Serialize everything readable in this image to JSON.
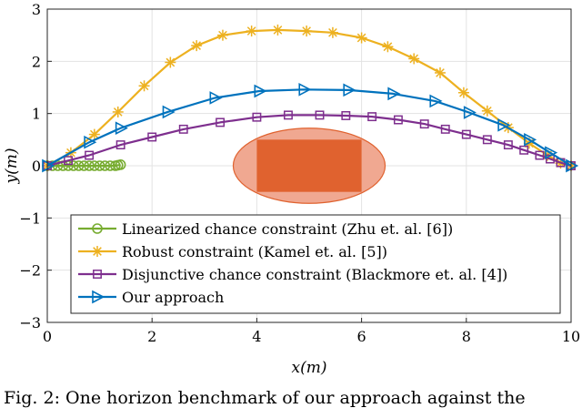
{
  "chart_data": {
    "type": "line",
    "xlabel": "x(m)",
    "ylabel": "y(m)",
    "xlim": [
      0,
      10
    ],
    "ylim": [
      -3,
      3
    ],
    "x_ticks": [
      "0",
      "2",
      "4",
      "6",
      "8",
      "10"
    ],
    "y_ticks": [
      "3",
      "2",
      "1",
      "0",
      "-1",
      "-2",
      "-3"
    ],
    "grid": true,
    "legend_position": "lower-center",
    "obstacle": {
      "rect_x": [
        4,
        6
      ],
      "rect_y": [
        -0.5,
        0.5
      ],
      "ellipse_center": [
        5,
        0
      ],
      "ellipse_radii": [
        1.45,
        0.72
      ],
      "rect_color": "#e0622f",
      "ellipse_color": "#f0a891"
    },
    "series": [
      {
        "name": "Linearized chance constraint (Zhu et. al. [6])",
        "color": "#77ac30",
        "marker": "circle",
        "x": [
          0,
          0.1,
          0.2,
          0.3,
          0.4,
          0.5,
          0.6,
          0.7,
          0.8,
          0.9,
          1.0,
          1.1,
          1.2,
          1.3,
          1.35,
          1.4
        ],
        "y": [
          0,
          0,
          0,
          0,
          0,
          0,
          0,
          0,
          0,
          0,
          0,
          0,
          0,
          0,
          0.01,
          0.02
        ]
      },
      {
        "name": "Robust constraint (Kamel et. al. [5])",
        "color": "#edb120",
        "marker": "star",
        "x": [
          0,
          0.45,
          0.9,
          1.35,
          1.85,
          2.35,
          2.85,
          3.35,
          3.9,
          4.4,
          4.95,
          5.45,
          6.0,
          6.5,
          7.0,
          7.5,
          7.95,
          8.4,
          8.8,
          9.2,
          9.55,
          9.8,
          10
        ],
        "y": [
          0,
          0.25,
          0.6,
          1.03,
          1.53,
          1.98,
          2.3,
          2.5,
          2.58,
          2.6,
          2.58,
          2.55,
          2.45,
          2.28,
          2.05,
          1.78,
          1.4,
          1.05,
          0.73,
          0.43,
          0.2,
          0.05,
          0
        ]
      },
      {
        "name": "Disjunctive chance constraint (Blackmore et. al. [4])",
        "color": "#7e2f8e",
        "marker": "square",
        "x": [
          0,
          0.4,
          0.8,
          1.4,
          2.0,
          2.6,
          3.3,
          4.0,
          4.6,
          5.2,
          5.7,
          6.2,
          6.7,
          7.2,
          7.6,
          8.0,
          8.4,
          8.8,
          9.1,
          9.4,
          9.6,
          9.8,
          10
        ],
        "y": [
          0,
          0.1,
          0.2,
          0.4,
          0.55,
          0.7,
          0.83,
          0.93,
          0.97,
          0.97,
          0.96,
          0.94,
          0.88,
          0.8,
          0.7,
          0.6,
          0.5,
          0.4,
          0.3,
          0.2,
          0.13,
          0.06,
          0
        ]
      },
      {
        "name": "Our approach",
        "color": "#0072bd",
        "marker": "triangle-right",
        "x": [
          0,
          0.8,
          1.4,
          2.3,
          3.2,
          4.05,
          4.9,
          5.75,
          6.6,
          7.4,
          8.05,
          8.7,
          9.2,
          9.6,
          10
        ],
        "y": [
          0,
          0.45,
          0.72,
          1.03,
          1.3,
          1.43,
          1.46,
          1.45,
          1.38,
          1.24,
          1.02,
          0.78,
          0.5,
          0.25,
          0
        ]
      }
    ]
  },
  "caption": "Fig. 2: One horizon benchmark of our approach against the"
}
